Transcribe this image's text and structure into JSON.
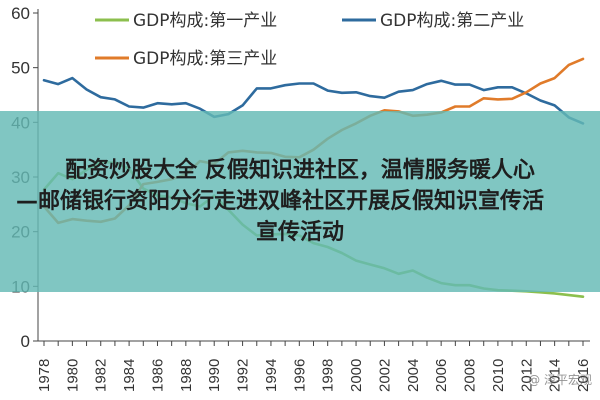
{
  "chart_data": {
    "type": "line",
    "title": "",
    "xlabel": "",
    "ylabel": "",
    "ylim": [
      0,
      60
    ],
    "yticks": [
      0,
      10,
      20,
      30,
      40,
      50,
      60
    ],
    "x": [
      1978,
      1979,
      1980,
      1981,
      1982,
      1983,
      1984,
      1985,
      1986,
      1987,
      1988,
      1989,
      1990,
      1991,
      1992,
      1993,
      1994,
      1995,
      1996,
      1997,
      1998,
      1999,
      2000,
      2001,
      2002,
      2003,
      2004,
      2005,
      2006,
      2007,
      2008,
      2009,
      2010,
      2011,
      2012,
      2013,
      2014,
      2015,
      2016
    ],
    "xticks": [
      "1978",
      "1980",
      "1982",
      "1984",
      "1986",
      "1988",
      "1990",
      "1992",
      "1994",
      "1996",
      "1998",
      "2000",
      "2002",
      "2004",
      "2006",
      "2008",
      "2010",
      "2012",
      "2014",
      "2016"
    ],
    "grid": false,
    "legend": "top",
    "series": [
      {
        "name": "GDP构成:第一产业",
        "color": "#8cbf4e",
        "values": [
          27.7,
          30.7,
          29.6,
          31.3,
          32.8,
          32.6,
          31.5,
          27.9,
          26.6,
          26.3,
          25.2,
          24.6,
          26.6,
          24.0,
          21.3,
          19.3,
          19.5,
          19.6,
          19.3,
          17.9,
          17.2,
          16.1,
          14.7,
          14.0,
          13.3,
          12.3,
          12.9,
          11.6,
          10.6,
          10.2,
          10.2,
          9.6,
          9.3,
          9.2,
          9.1,
          8.9,
          8.7,
          8.4,
          8.1
        ]
      },
      {
        "name": "GDP构成:第二产业",
        "color": "#2e6b9e",
        "values": [
          47.7,
          47.0,
          48.1,
          46.0,
          44.6,
          44.2,
          42.9,
          42.7,
          43.5,
          43.3,
          43.5,
          42.5,
          41.0,
          41.5,
          43.1,
          46.2,
          46.2,
          46.8,
          47.1,
          47.1,
          45.8,
          45.4,
          45.5,
          44.8,
          44.5,
          45.6,
          45.9,
          47.0,
          47.6,
          46.9,
          46.9,
          45.9,
          46.4,
          46.4,
          45.3,
          44.0,
          43.1,
          40.9,
          39.8
        ]
      },
      {
        "name": "GDP构成:第三产业",
        "color": "#e07b2a",
        "values": [
          24.6,
          21.6,
          22.3,
          22.0,
          21.8,
          22.4,
          24.8,
          28.7,
          29.1,
          29.6,
          30.5,
          32.9,
          32.4,
          34.5,
          34.8,
          34.5,
          34.4,
          33.7,
          33.6,
          35.0,
          37.0,
          38.6,
          39.8,
          41.2,
          42.2,
          42.0,
          41.2,
          41.4,
          41.8,
          42.9,
          42.9,
          44.4,
          44.2,
          44.3,
          45.5,
          47.1,
          48.1,
          50.5,
          51.6
        ]
      }
    ]
  },
  "overlay": {
    "line1": "配资炒股大全 反假知识进社区，温情服务暖人心",
    "line2": "—邮储银行资阳分行走进双峰社区开展反假知识宣传活",
    "line3": "宣传活动"
  },
  "watermark": "@ 泽平宏观"
}
